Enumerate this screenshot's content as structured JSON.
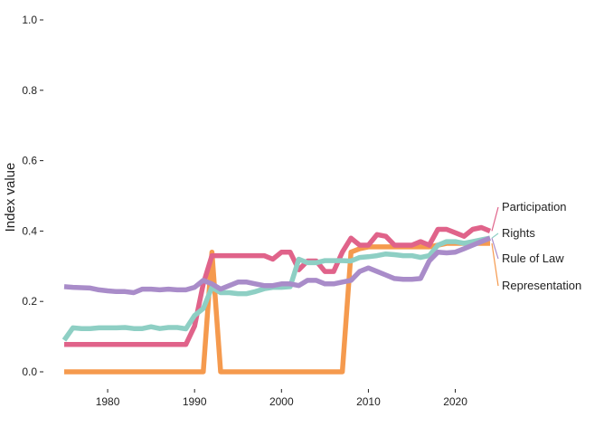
{
  "chart_data": {
    "type": "line",
    "title": "",
    "xlabel": "",
    "ylabel": "Index value",
    "xlim": [
      1975,
      2024
    ],
    "ylim": [
      0,
      1.0
    ],
    "x_ticks": [
      1980,
      1990,
      2000,
      2010,
      2020
    ],
    "y_ticks": [
      0.0,
      0.2,
      0.4,
      0.6,
      0.8,
      1.0
    ],
    "y_tick_labels": [
      "0.0",
      "0.2",
      "0.4",
      "0.6",
      "0.8",
      "1.0"
    ],
    "grid": false,
    "legend": "labels at line ends (right)",
    "x": [
      1975,
      1976,
      1977,
      1978,
      1979,
      1980,
      1981,
      1982,
      1983,
      1984,
      1985,
      1986,
      1987,
      1988,
      1989,
      1990,
      1991,
      1992,
      1993,
      1994,
      1995,
      1996,
      1997,
      1998,
      1999,
      2000,
      2001,
      2002,
      2003,
      2004,
      2005,
      2006,
      2007,
      2008,
      2009,
      2010,
      2011,
      2012,
      2013,
      2014,
      2015,
      2016,
      2017,
      2018,
      2019,
      2020,
      2021,
      2022,
      2023,
      2024
    ],
    "series": [
      {
        "name": "Representation",
        "color": "#f59a4e",
        "values": [
          0,
          0,
          0,
          0,
          0,
          0,
          0,
          0,
          0,
          0,
          0,
          0,
          0,
          0,
          0,
          0,
          0,
          0.34,
          0,
          0,
          0,
          0,
          0,
          0,
          0,
          0,
          0,
          0,
          0,
          0,
          0,
          0,
          0,
          0.34,
          0.35,
          0.355,
          0.355,
          0.355,
          0.355,
          0.355,
          0.355,
          0.355,
          0.355,
          0.36,
          0.365,
          0.365,
          0.365,
          0.365,
          0.365,
          0.365
        ]
      },
      {
        "name": "Participation",
        "color": "#e0638a",
        "values": [
          0.078,
          0.078,
          0.078,
          0.078,
          0.078,
          0.078,
          0.078,
          0.078,
          0.078,
          0.078,
          0.078,
          0.078,
          0.078,
          0.078,
          0.078,
          0.13,
          0.25,
          0.33,
          0.33,
          0.33,
          0.33,
          0.33,
          0.33,
          0.33,
          0.32,
          0.34,
          0.34,
          0.29,
          0.315,
          0.315,
          0.285,
          0.285,
          0.34,
          0.38,
          0.36,
          0.36,
          0.39,
          0.385,
          0.36,
          0.36,
          0.36,
          0.37,
          0.36,
          0.405,
          0.405,
          0.395,
          0.385,
          0.405,
          0.41,
          0.4
        ]
      },
      {
        "name": "Rights",
        "color": "#8ecfc4",
        "values": [
          0.09,
          0.125,
          0.123,
          0.123,
          0.125,
          0.125,
          0.125,
          0.126,
          0.123,
          0.123,
          0.128,
          0.123,
          0.126,
          0.126,
          0.122,
          0.16,
          0.18,
          0.24,
          0.225,
          0.225,
          0.222,
          0.222,
          0.228,
          0.236,
          0.24,
          0.24,
          0.242,
          0.32,
          0.31,
          0.31,
          0.316,
          0.316,
          0.316,
          0.315,
          0.325,
          0.327,
          0.33,
          0.335,
          0.333,
          0.33,
          0.33,
          0.325,
          0.33,
          0.36,
          0.37,
          0.37,
          0.365,
          0.37,
          0.375,
          0.38
        ]
      },
      {
        "name": "Rule of Law",
        "color": "#a98cc9",
        "values": [
          0.242,
          0.24,
          0.239,
          0.238,
          0.233,
          0.23,
          0.228,
          0.228,
          0.225,
          0.235,
          0.235,
          0.233,
          0.235,
          0.233,
          0.233,
          0.24,
          0.26,
          0.25,
          0.235,
          0.245,
          0.255,
          0.255,
          0.25,
          0.245,
          0.245,
          0.25,
          0.25,
          0.245,
          0.26,
          0.26,
          0.25,
          0.25,
          0.255,
          0.26,
          0.285,
          0.295,
          0.285,
          0.275,
          0.265,
          0.263,
          0.263,
          0.265,
          0.315,
          0.34,
          0.338,
          0.34,
          0.35,
          0.36,
          0.37,
          0.38
        ]
      }
    ],
    "label_order": [
      "Participation",
      "Rights",
      "Rule of Law",
      "Representation"
    ]
  }
}
